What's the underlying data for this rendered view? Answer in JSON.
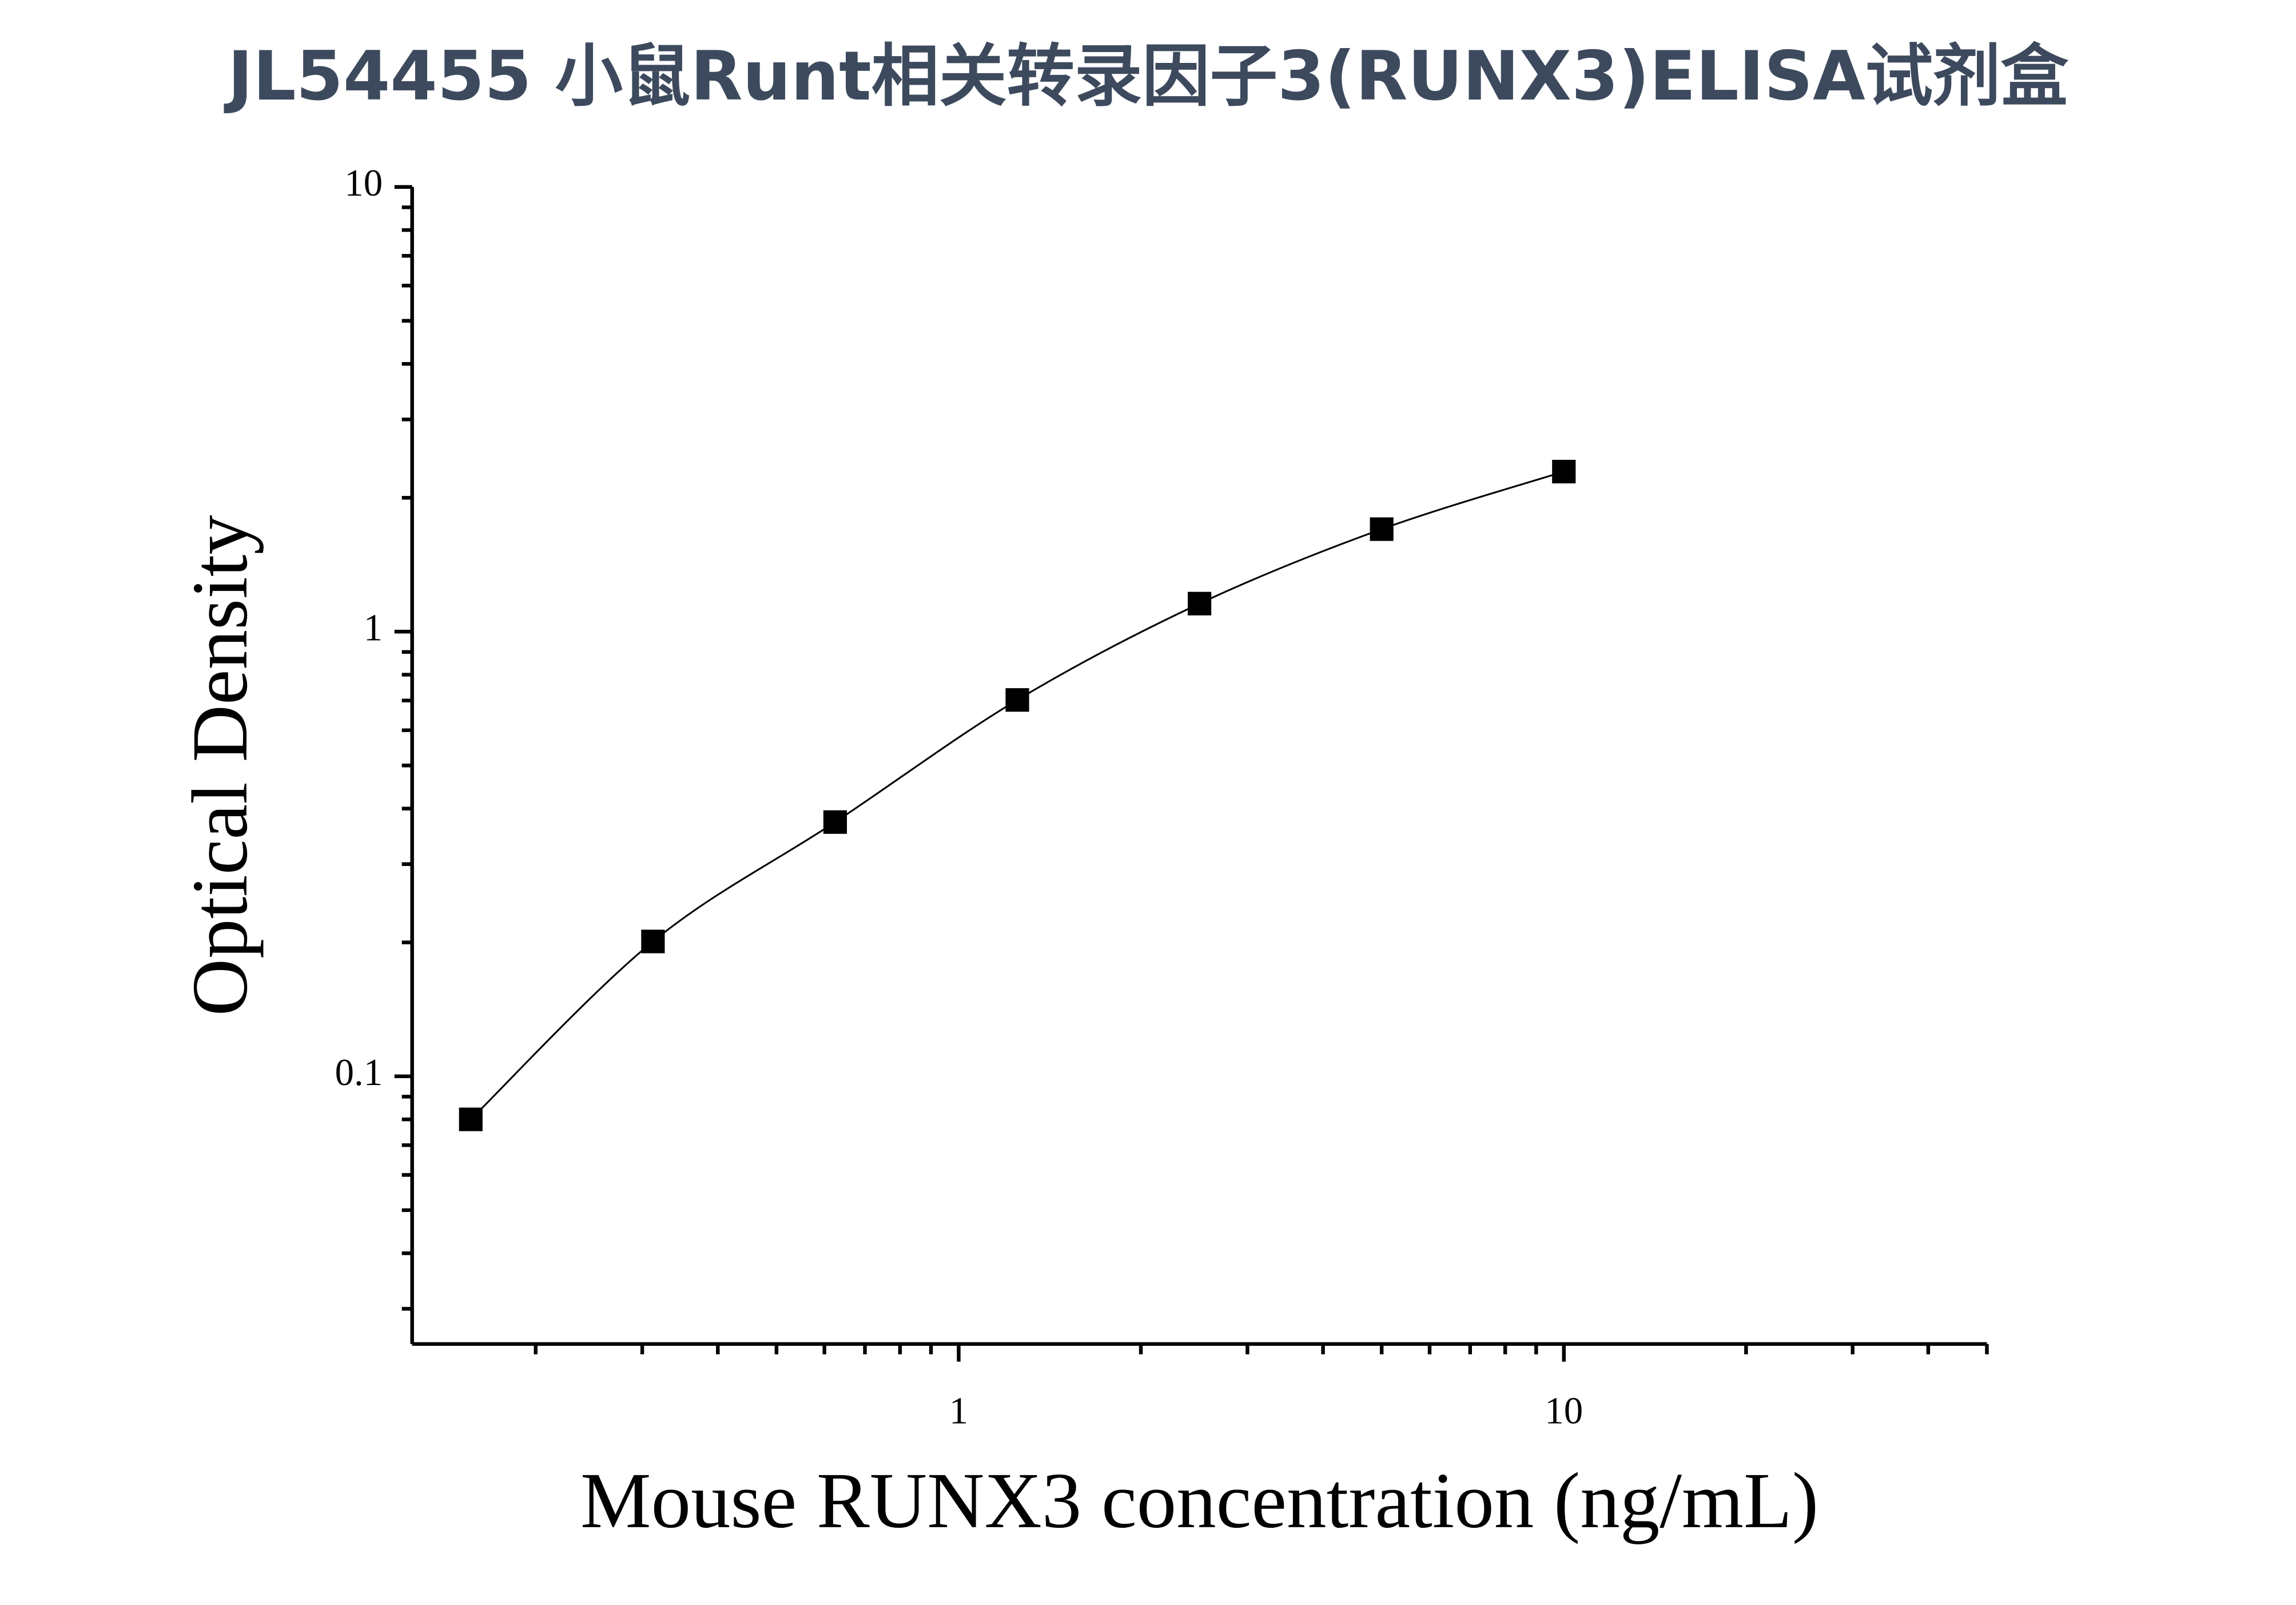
{
  "chart_data": {
    "type": "scatter",
    "title": "JL54455 小鼠Runt相关转录因子3(RUNX3)ELISA试剂盒",
    "x_label": "Mouse RUNX3 concentration (ng/mL)",
    "y_label": "Optical Density",
    "x_log": true,
    "y_log": true,
    "xlim": [
      0.125,
      50
    ],
    "ylim": [
      0.025,
      10
    ],
    "xticks": [
      1,
      10
    ],
    "yticks": [
      0.1,
      1,
      10
    ],
    "xminor": [
      0.2,
      0.3,
      0.4,
      0.5,
      0.6,
      0.7,
      0.8,
      0.9,
      2,
      3,
      4,
      5,
      6,
      7,
      8,
      9,
      20,
      30,
      40,
      50
    ],
    "yminor": [
      0.03,
      0.04,
      0.05,
      0.06,
      0.07,
      0.08,
      0.09,
      0.2,
      0.3,
      0.4,
      0.5,
      0.6,
      0.7,
      0.8,
      0.9,
      2,
      3,
      4,
      5,
      6,
      7,
      8,
      9
    ],
    "series": [
      {
        "color": "#000000",
        "x": [
          0.15625,
          0.3125,
          0.625,
          1.25,
          2.5,
          5,
          10
        ],
        "values": [
          0.08,
          0.201,
          0.373,
          0.702,
          1.156,
          1.7,
          2.29
        ]
      }
    ]
  }
}
